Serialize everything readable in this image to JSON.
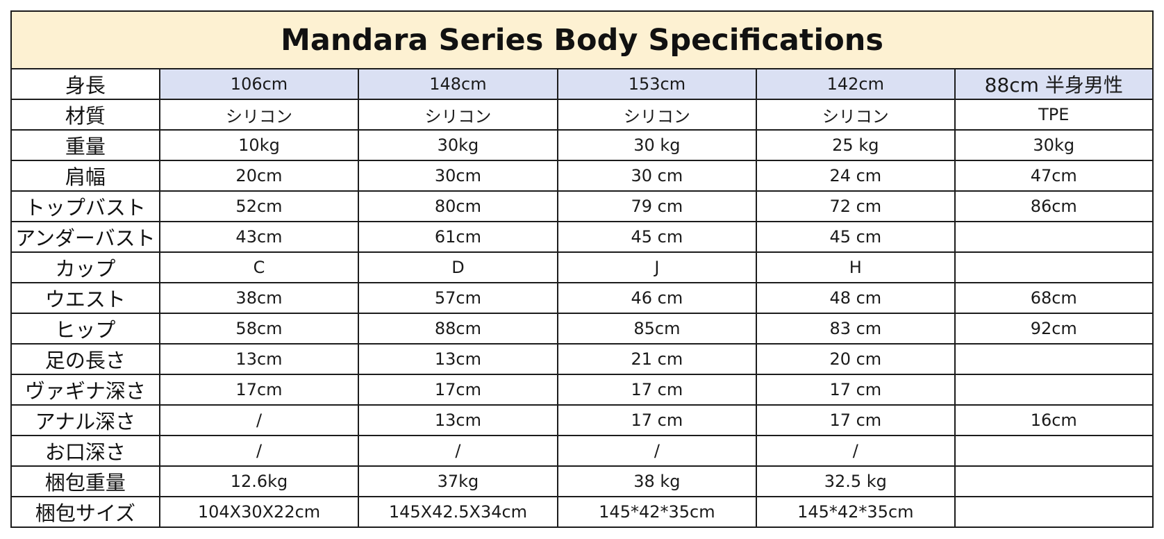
{
  "title": "Mandara Series Body Specifications",
  "rows": [
    {
      "label": "身長",
      "values": [
        "106cm",
        "148cm",
        "153cm",
        "142cm",
        "88cm 半身男性"
      ]
    },
    {
      "label": "材質",
      "values": [
        "シリコン",
        "シリコン",
        "シリコン",
        "シリコン",
        "TPE"
      ]
    },
    {
      "label": "重量",
      "values": [
        "10kg",
        "30kg",
        "30 kg",
        "25 kg",
        "30kg"
      ]
    },
    {
      "label": "肩幅",
      "values": [
        "20cm",
        "30cm",
        "30 cm",
        "24 cm",
        "47cm"
      ]
    },
    {
      "label": "トップバスト",
      "values": [
        "52cm",
        "80cm",
        "79 cm",
        "72 cm",
        "86cm"
      ]
    },
    {
      "label": "アンダーバスト",
      "values": [
        "43cm",
        "61cm",
        "45 cm",
        "45 cm",
        ""
      ]
    },
    {
      "label": "カップ",
      "values": [
        "C",
        "D",
        "J",
        "H",
        ""
      ]
    },
    {
      "label": "ウエスト",
      "values": [
        "38cm",
        "57cm",
        "46 cm",
        "48 cm",
        "68cm"
      ]
    },
    {
      "label": "ヒップ",
      "values": [
        "58cm",
        "88cm",
        "85cm",
        "83 cm",
        "92cm"
      ]
    },
    {
      "label": "足の長さ",
      "values": [
        "13cm",
        "13cm",
        "21 cm",
        "20 cm",
        ""
      ]
    },
    {
      "label": "ヴァギナ深さ",
      "values": [
        "17cm",
        "17cm",
        "17 cm",
        "17 cm",
        ""
      ]
    },
    {
      "label": "アナル深さ",
      "values": [
        "/",
        "13cm",
        "17 cm",
        "17 cm",
        "16cm"
      ]
    },
    {
      "label": "お口深さ",
      "values": [
        "/",
        "/",
        "/",
        "/",
        ""
      ]
    },
    {
      "label": "梱包重量",
      "values": [
        "12.6kg",
        "37kg",
        "38 kg",
        "32.5 kg",
        ""
      ]
    },
    {
      "label": "梱包サイズ",
      "values": [
        "104X30X22cm",
        "145X42.5X34cm",
        "145*42*35cm",
        "145*42*35cm",
        ""
      ]
    }
  ]
}
